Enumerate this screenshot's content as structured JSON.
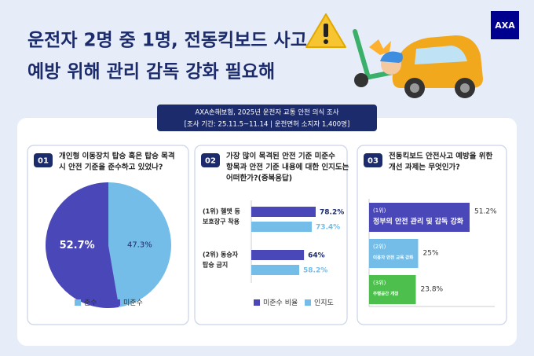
{
  "header": {
    "title_lines": [
      "운전자 2명 중 1명, 전동킥보드 사고",
      "예방 위해 관리 감독 강화 필요해"
    ],
    "logo": "AXA"
  },
  "source": {
    "lines": [
      "AXA손해보험, 2025년 운전자 교통 안전 의식 조사",
      "[조사 기간: 25.11.5~11.14 | 운전면허 소지자 1,400명]"
    ]
  },
  "chart_data": [
    {
      "type": "pie",
      "number": "01",
      "title_lines": [
        "개인형 이동장치 탑승 혹은 탑승 목격",
        "시 안전 기준을 준수하고 있었나?"
      ],
      "categories": [
        "준수",
        "미준수"
      ],
      "values": [
        47.3,
        52.7
      ],
      "value_labels": [
        "47.3%",
        "52.7%"
      ],
      "colors": [
        "#74bde8",
        "#4a47b8"
      ]
    },
    {
      "type": "groupbar",
      "number": "02",
      "title_lines": [
        "가장 많이 목격된 안전 기준 미준수",
        "항목과 안전 기준 내용에 대한 인지도는",
        "어떠한가?(중복응답)"
      ],
      "categories": [
        [
          "(1위) 헬멧 등",
          "보호장구 착용"
        ],
        [
          "(2위) 동승자",
          "탑승 금지"
        ]
      ],
      "series": [
        {
          "name": "미준수 비율",
          "color": "#4a47b8",
          "values": [
            78.2,
            64
          ],
          "value_labels": [
            "78.2%",
            "64%"
          ]
        },
        {
          "name": "인지도",
          "color": "#74bde8",
          "values": [
            73.4,
            58.2
          ],
          "value_labels": [
            "73.4%",
            "58.2%"
          ]
        }
      ]
    },
    {
      "type": "rankbar",
      "number": "03",
      "title_lines": [
        "전동킥보드 안전사고 예방을 위한",
        "개선 과제는 무엇인가?"
      ],
      "categories": [
        [
          "(1위)",
          "정부의 안전 관리 및 감독 강화"
        ],
        [
          "(2위)",
          "이용자 안전 교육 강화"
        ],
        [
          "(3위)",
          "주행공간 개정"
        ]
      ],
      "values": [
        51.2,
        25,
        23.8
      ],
      "value_labels": [
        "51.2%",
        "25%",
        "23.8%"
      ],
      "colors": [
        "#4a47b8",
        "#74bde8",
        "#4cbf4c"
      ]
    }
  ]
}
